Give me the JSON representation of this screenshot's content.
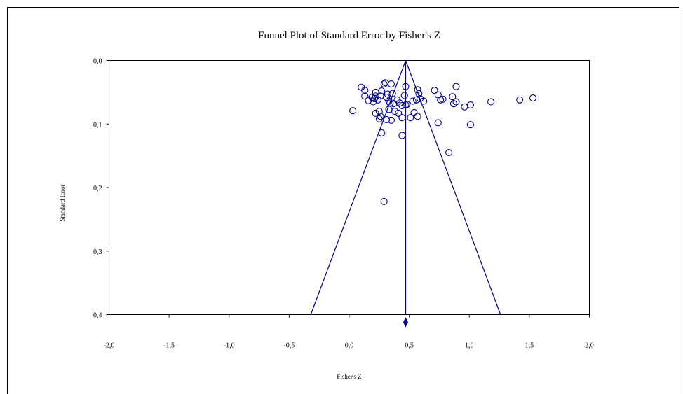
{
  "chart_data": {
    "type": "scatter",
    "title": "Funnel Plot of Standard Error by Fisher's Z",
    "xlabel": "Fisher's Z",
    "ylabel": "Standard Error",
    "xlim": [
      -2.0,
      2.0
    ],
    "ylim": [
      0.0,
      0.4
    ],
    "y_inverted": true,
    "x_ticks": [
      "-2,0",
      "-1,5",
      "-1,0",
      "-0,5",
      "0,0",
      "0,5",
      "1,0",
      "1,5",
      "2,0"
    ],
    "x_tick_values": [
      -2.0,
      -1.5,
      -1.0,
      -0.5,
      0.0,
      0.5,
      1.0,
      1.5,
      2.0
    ],
    "y_ticks": [
      "0,0",
      "0,1",
      "0,2",
      "0,3",
      "0,4"
    ],
    "y_tick_values": [
      0.0,
      0.1,
      0.2,
      0.3,
      0.4
    ],
    "grid": false,
    "legend": "none",
    "pooled_estimate": 0.47,
    "funnel_lines": [
      {
        "x": [
          0.47,
          -0.32
        ],
        "y": [
          0.0,
          0.4
        ]
      },
      {
        "x": [
          0.47,
          1.26
        ],
        "y": [
          0.0,
          0.4
        ]
      },
      {
        "x": [
          0.47,
          0.47
        ],
        "y": [
          0.0,
          0.4
        ]
      }
    ],
    "series": [
      {
        "points": [
          {
            "x": 0.1,
            "y": 0.042
          },
          {
            "x": 0.13,
            "y": 0.047
          },
          {
            "x": 0.13,
            "y": 0.056
          },
          {
            "x": 0.16,
            "y": 0.063
          },
          {
            "x": 0.19,
            "y": 0.058
          },
          {
            "x": 0.2,
            "y": 0.065
          },
          {
            "x": 0.21,
            "y": 0.06
          },
          {
            "x": 0.22,
            "y": 0.05
          },
          {
            "x": 0.22,
            "y": 0.056
          },
          {
            "x": 0.24,
            "y": 0.062
          },
          {
            "x": 0.26,
            "y": 0.056
          },
          {
            "x": 0.27,
            "y": 0.048
          },
          {
            "x": 0.29,
            "y": 0.037
          },
          {
            "x": 0.3,
            "y": 0.035
          },
          {
            "x": 0.31,
            "y": 0.058
          },
          {
            "x": 0.32,
            "y": 0.053
          },
          {
            "x": 0.33,
            "y": 0.064
          },
          {
            "x": 0.34,
            "y": 0.067
          },
          {
            "x": 0.35,
            "y": 0.037
          },
          {
            "x": 0.36,
            "y": 0.052
          },
          {
            "x": 0.37,
            "y": 0.068
          },
          {
            "x": 0.4,
            "y": 0.062
          },
          {
            "x": 0.42,
            "y": 0.067
          },
          {
            "x": 0.44,
            "y": 0.071
          },
          {
            "x": 0.46,
            "y": 0.055
          },
          {
            "x": 0.47,
            "y": 0.041
          },
          {
            "x": 0.48,
            "y": 0.069
          },
          {
            "x": 0.53,
            "y": 0.064
          },
          {
            "x": 0.56,
            "y": 0.062
          },
          {
            "x": 0.57,
            "y": 0.046
          },
          {
            "x": 0.58,
            "y": 0.052
          },
          {
            "x": 0.59,
            "y": 0.06
          },
          {
            "x": 0.62,
            "y": 0.064
          },
          {
            "x": 0.71,
            "y": 0.047
          },
          {
            "x": 0.74,
            "y": 0.054
          },
          {
            "x": 0.76,
            "y": 0.062
          },
          {
            "x": 0.78,
            "y": 0.061
          },
          {
            "x": 0.86,
            "y": 0.057
          },
          {
            "x": 0.87,
            "y": 0.068
          },
          {
            "x": 0.89,
            "y": 0.065
          },
          {
            "x": 0.89,
            "y": 0.041
          },
          {
            "x": 0.96,
            "y": 0.073
          },
          {
            "x": 1.01,
            "y": 0.07
          },
          {
            "x": 1.18,
            "y": 0.065
          },
          {
            "x": 1.42,
            "y": 0.062
          },
          {
            "x": 1.53,
            "y": 0.059
          },
          {
            "x": 0.03,
            "y": 0.079
          },
          {
            "x": 0.22,
            "y": 0.083
          },
          {
            "x": 0.25,
            "y": 0.08
          },
          {
            "x": 0.25,
            "y": 0.092
          },
          {
            "x": 0.26,
            "y": 0.088
          },
          {
            "x": 0.31,
            "y": 0.093
          },
          {
            "x": 0.33,
            "y": 0.077
          },
          {
            "x": 0.35,
            "y": 0.094
          },
          {
            "x": 0.38,
            "y": 0.08
          },
          {
            "x": 0.41,
            "y": 0.083
          },
          {
            "x": 0.44,
            "y": 0.09
          },
          {
            "x": 0.47,
            "y": 0.07
          },
          {
            "x": 0.51,
            "y": 0.09
          },
          {
            "x": 0.54,
            "y": 0.082
          },
          {
            "x": 0.57,
            "y": 0.088
          },
          {
            "x": 0.74,
            "y": 0.098
          },
          {
            "x": 1.01,
            "y": 0.101
          },
          {
            "x": 0.27,
            "y": 0.114
          },
          {
            "x": 0.44,
            "y": 0.118
          },
          {
            "x": 0.83,
            "y": 0.145
          },
          {
            "x": 0.29,
            "y": 0.222
          }
        ]
      }
    ]
  },
  "colors": {
    "mark": "#00008b",
    "axis": "#000000",
    "frame": "#000000"
  }
}
